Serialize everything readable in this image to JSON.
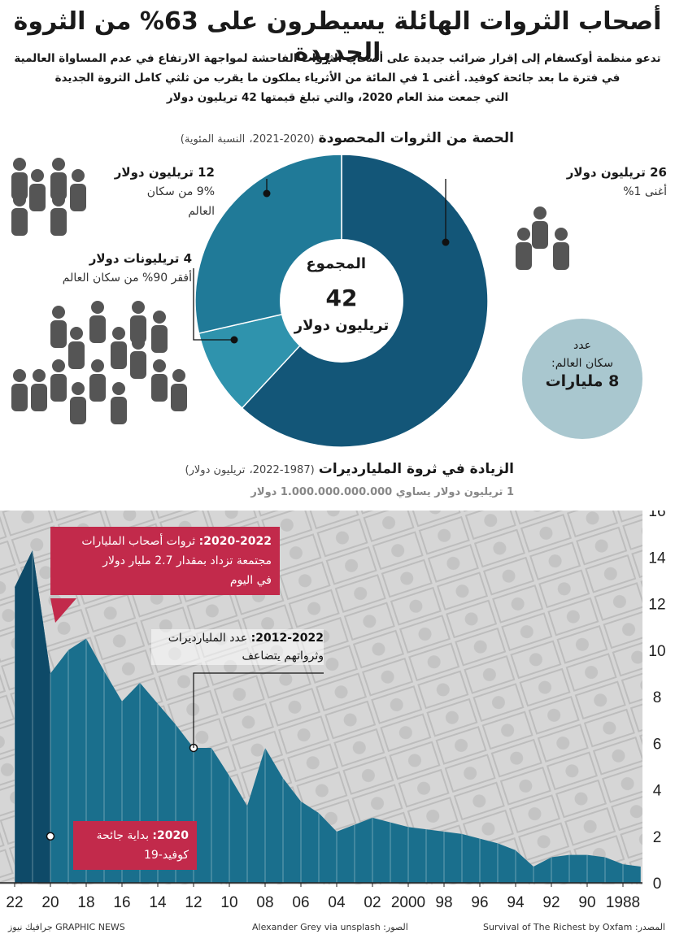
{
  "title": "أصحاب الثروات الهائلة يسيطرون على 63% من الثروة الجديدة",
  "intro": [
    "تدعو منظمة أوكسفام إلى إقرار ضرائب جديدة على أصحاب الثروات الفاحشة لمواجهة الارتفاع في عدم المساواة العالمية",
    "في فترة ما بعد جائحة كوفيد. أغنى 1 في المائة من الأثرياء يملكون ما يقرب من ثلثي كامل الثروة الجديدة",
    "التي جمعت منذ العام 2020، والتي تبلغ قيمتها 42 تريليون دولار"
  ],
  "pie_section": {
    "title": "الحصة من الثروات المحصودة",
    "years": "(2020-2021،",
    "unit": "النسبة المئوية)"
  },
  "pie_labels": {
    "top1": {
      "amount": "26 تريليون دولار",
      "desc": "أغنى 1%"
    },
    "mid9": {
      "amount": "12 تريليون دولار",
      "desc1": "9% من سكان",
      "desc2": "العالم"
    },
    "bottom90": {
      "amount": "4 تريليونات دولار",
      "desc": "أفقر 90% من سكان العالم"
    }
  },
  "pie_center": {
    "label": "المجموع",
    "value": "42",
    "unit": "تريليون دولار"
  },
  "population": {
    "line1": "عدد",
    "line2": "سكان العالم:",
    "value": "8 مليارات"
  },
  "increase_section": {
    "title": "الزيادة في ثروة المليارديرات",
    "years": "(1987-2022،",
    "unit": "تريليون دولار)",
    "note": "1 تريليون دولار يساوي 1.000.000.000.000 دولار"
  },
  "callouts": {
    "c2020_2022": {
      "bold": "2020-2022:",
      "l1": " ثروات أصحاب المليارات",
      "l2": "مجتمعة تزداد بمقدار 2.7 مليار دولار",
      "l3": "في اليوم"
    },
    "c2012_2022": {
      "bold": "2012-2022:",
      "l1": " عدد المليارديرات",
      "l2": "وثرواتهم يتضاعف"
    },
    "c2020": {
      "bold": "2020:",
      "l1": " بداية جائحة",
      "l2": "كوفيد-19"
    }
  },
  "footer": {
    "source": "المصدر: Survival of The Richest by Oxfam",
    "photo": "الصور: Alexander Grey via unsplash",
    "brand": "GRAPHIC NEWS جرافيك نيوز"
  },
  "colors": {
    "top1": "#135678",
    "mid9": "#207a98",
    "bottom90": "#2f93ad",
    "area_dark": "#0e4a68",
    "area": "#1a6f8d",
    "callout": "#c22a4b",
    "pop": "#a9c7cf"
  },
  "chart_data": [
    {
      "type": "pie",
      "title": "الحصة من الثروات المحصودة",
      "categories": [
        "أغنى 1%",
        "9% من سكان العالم",
        "أفقر 90% من سكان العالم"
      ],
      "values": [
        26,
        12,
        4
      ],
      "unit": "تريليون دولار",
      "total": 42
    },
    {
      "type": "area",
      "title": "الزيادة في ثروة المليارديرات",
      "x": [
        1987,
        1988,
        1989,
        1990,
        1991,
        1992,
        1993,
        1994,
        1995,
        1996,
        1997,
        1998,
        1999,
        2000,
        2001,
        2002,
        2003,
        2004,
        2005,
        2006,
        2007,
        2008,
        2009,
        2010,
        2011,
        2012,
        2013,
        2014,
        2015,
        2016,
        2017,
        2018,
        2019,
        2020,
        2021,
        2022
      ],
      "values": [
        0.7,
        0.8,
        1.1,
        1.2,
        1.2,
        1.1,
        0.7,
        1.4,
        1.7,
        1.9,
        2.1,
        2.2,
        2.3,
        2.4,
        2.6,
        2.8,
        2.5,
        2.2,
        3.0,
        3.5,
        4.5,
        5.8,
        3.3,
        4.6,
        5.8,
        5.8,
        6.8,
        7.7,
        8.6,
        7.8,
        9.1,
        10.5,
        10.0,
        9.0,
        14.3,
        12.7
      ],
      "ylim": [
        0,
        16
      ],
      "yticks": [
        0,
        2,
        4,
        6,
        8,
        10,
        12,
        14,
        16
      ],
      "xticks": [
        "1988",
        "90",
        "92",
        "94",
        "96",
        "98",
        "2000",
        "02",
        "04",
        "06",
        "08",
        "10",
        "12",
        "14",
        "16",
        "18",
        "20",
        "22"
      ],
      "y_axis_position": "right"
    }
  ]
}
